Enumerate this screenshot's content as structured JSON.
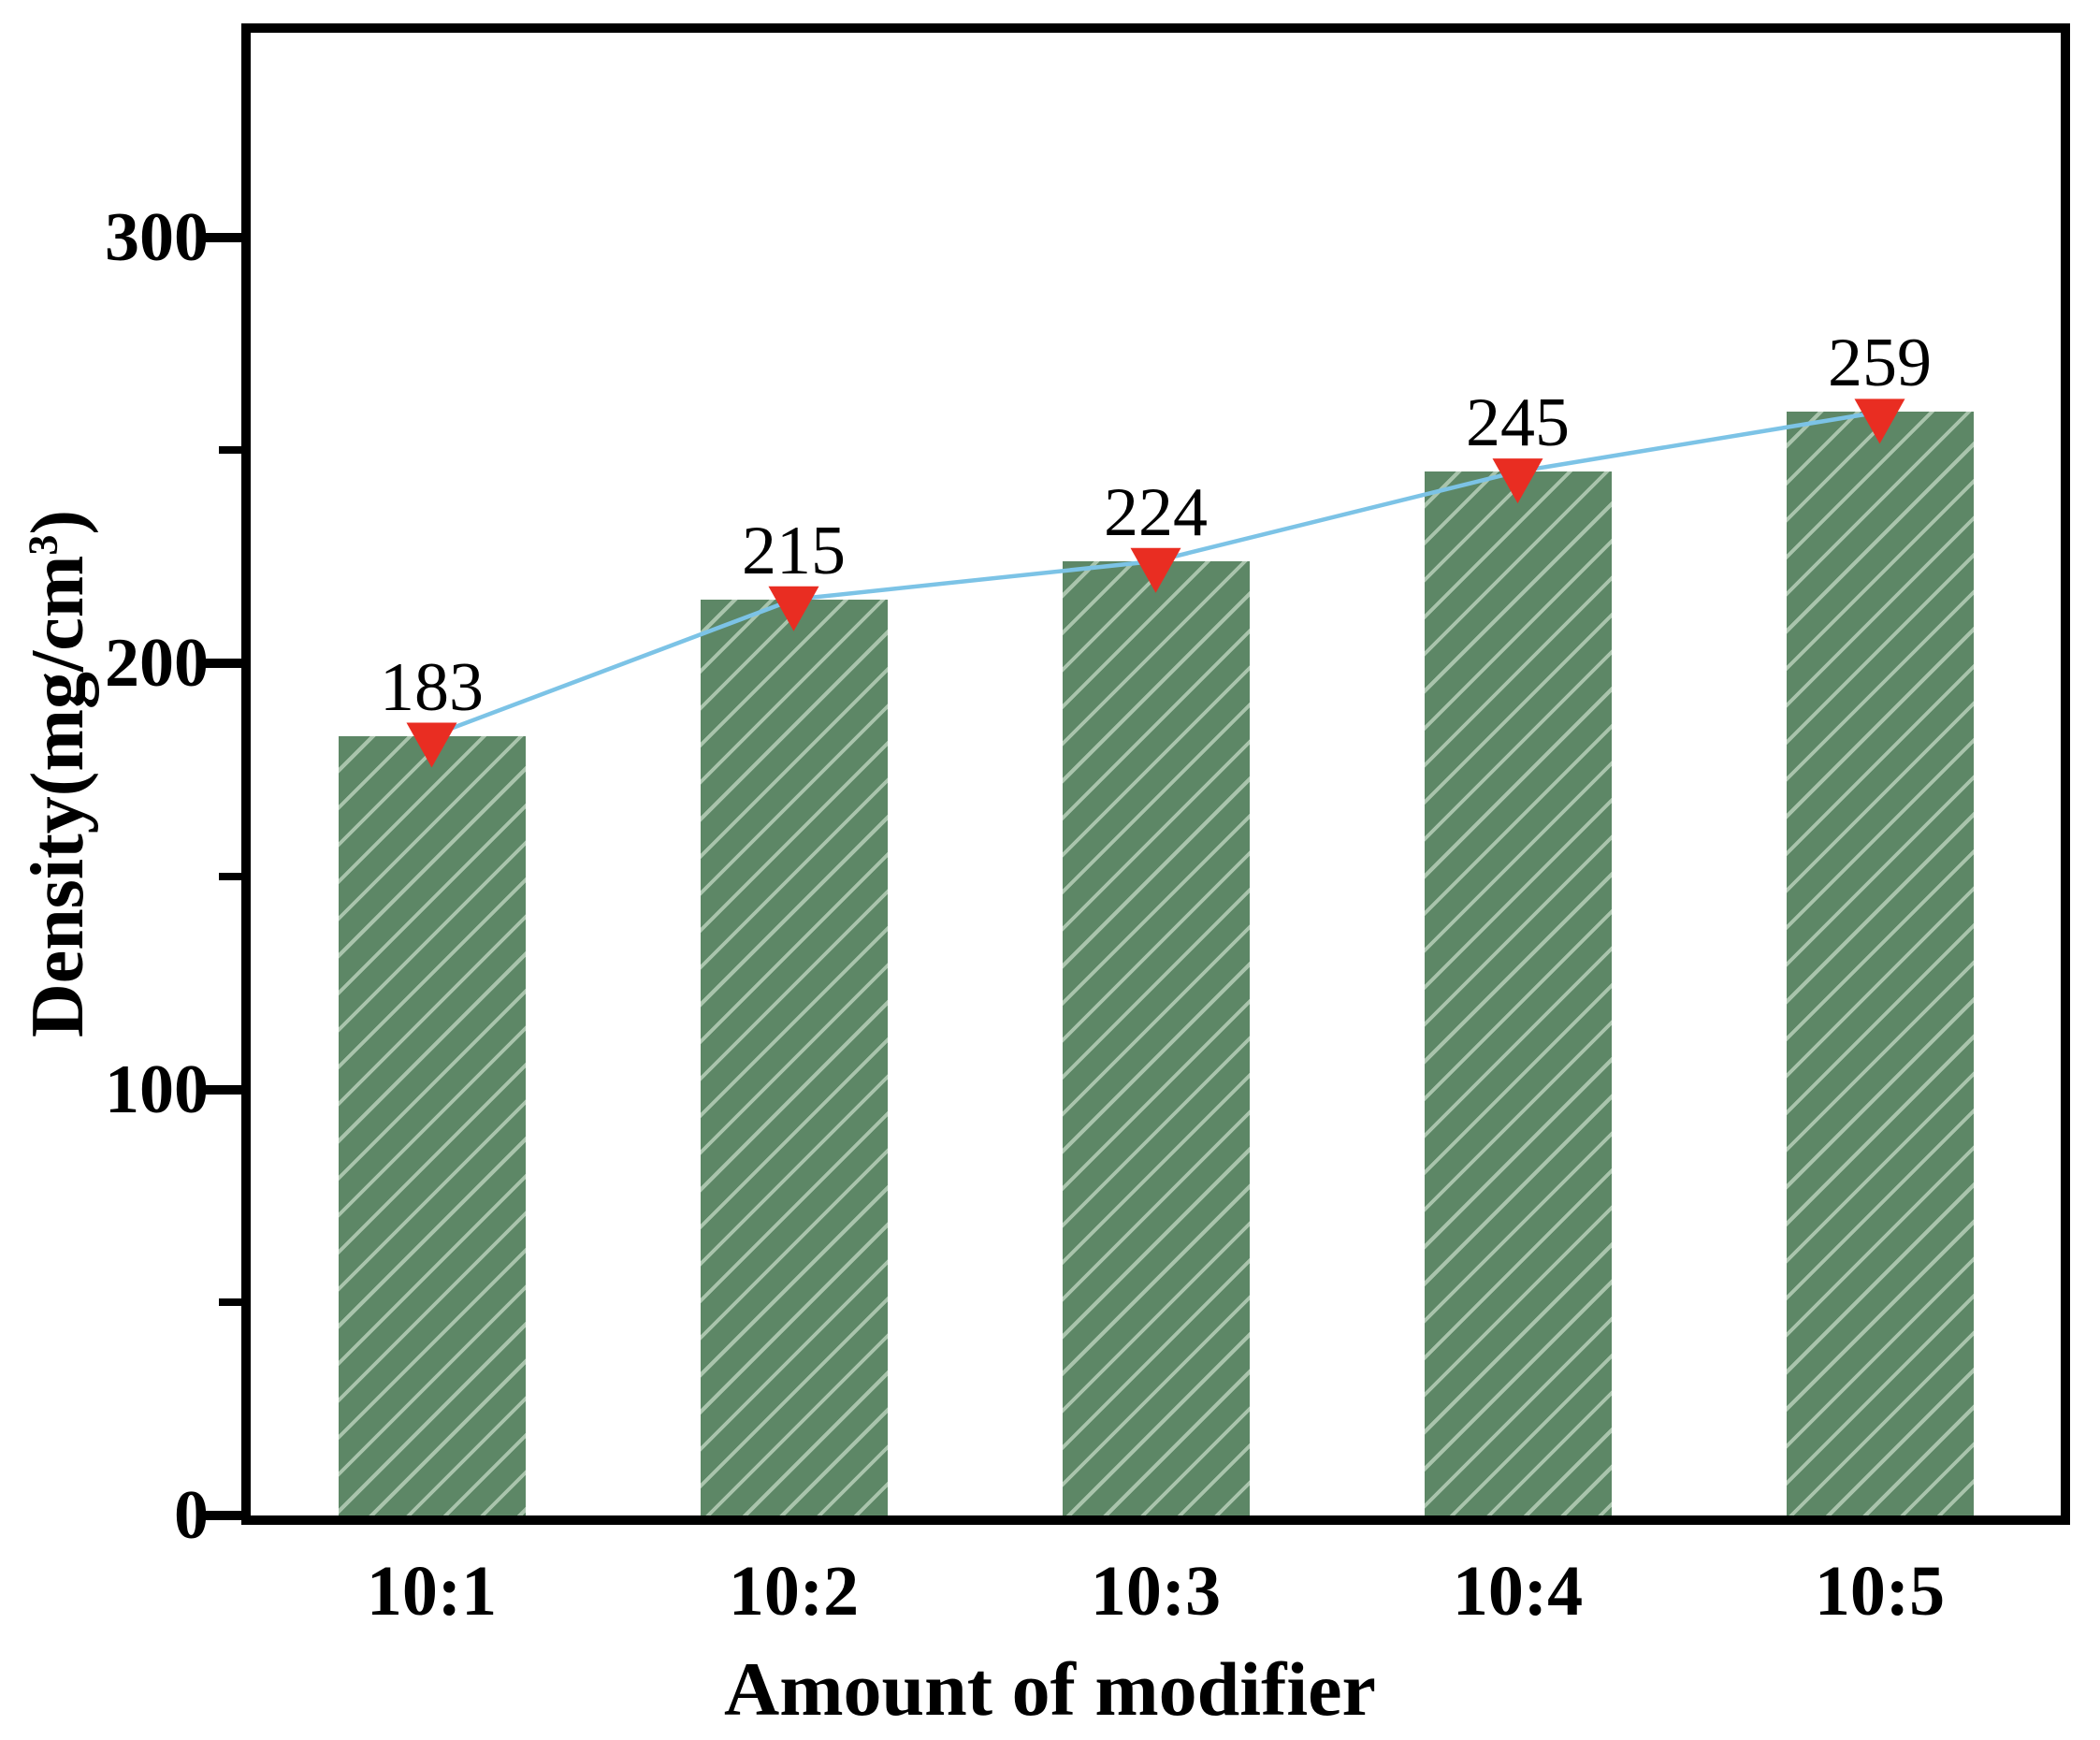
{
  "chart_data": {
    "type": "bar",
    "subtype": "bar-with-line-overlay",
    "categories": [
      "10:1",
      "10:2",
      "10:3",
      "10:4",
      "10:5"
    ],
    "values": [
      183,
      215,
      224,
      245,
      259
    ],
    "bar_labels": [
      "183",
      "215",
      "224",
      "245",
      "259"
    ],
    "title": "",
    "xlabel": "Amount of modifier",
    "ylabel": {
      "pre": "Density(mg/cm",
      "sup": "3",
      "post": ")"
    },
    "ylabel_text": "Density(mg/cm3)",
    "ylim": [
      0,
      348
    ],
    "yticks_major": [
      0,
      100,
      200,
      300
    ],
    "ytick_labels": [
      "0",
      "100",
      "200",
      "300"
    ],
    "yticks_minor": [
      50,
      150,
      250
    ],
    "grid": "off",
    "legend": "none",
    "line_series": {
      "name": "density-trend",
      "x": [
        "10:1",
        "10:2",
        "10:3",
        "10:4",
        "10:5"
      ],
      "y": [
        183,
        215,
        224,
        245,
        259
      ],
      "marker": "triangle-down"
    },
    "colors": {
      "bar_fill": "#5d8766",
      "bar_hatch": "#a9c4ac",
      "trend_line": "#7cc3e6",
      "marker": "#e92d22",
      "axis": "#000000",
      "background": "#ffffff",
      "text": "#000000"
    }
  }
}
